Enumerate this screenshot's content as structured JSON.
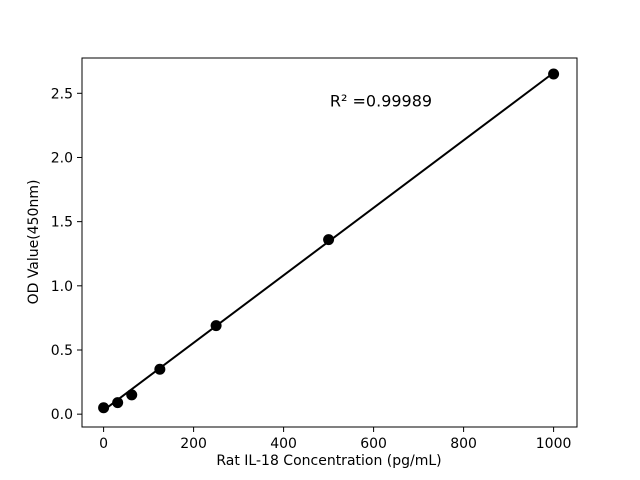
{
  "figure": {
    "background": "#ffffff"
  },
  "chart_data": {
    "type": "scatter",
    "xlabel": "Rat IL-18 Concentration (pg/mL)",
    "ylabel": "OD Value(450nm)",
    "annotation": "R² =0.99989",
    "x": [
      0,
      31.25,
      62.5,
      125,
      250,
      500,
      1000
    ],
    "y": [
      0.05,
      0.09,
      0.15,
      0.35,
      0.69,
      1.36,
      2.65
    ],
    "fit_line": {
      "x": [
        0,
        1000
      ],
      "y": [
        0.03,
        2.66
      ]
    },
    "xticks": [
      0,
      200,
      400,
      600,
      800,
      1000
    ],
    "xtick_labels": [
      "0",
      "200",
      "400",
      "600",
      "800",
      "1000"
    ],
    "yticks": [
      0,
      0.5,
      1.0,
      1.5,
      2.0,
      2.5
    ],
    "ytick_labels": [
      "0.0",
      "0.5",
      "1.0",
      "1.5",
      "2.0",
      "2.5"
    ],
    "xlim": [
      -48,
      1052
    ],
    "ylim": [
      -0.1,
      2.775
    ],
    "marker_color": "#000000",
    "line_color": "#000000",
    "axis_color": "#000000",
    "text_color": "#000000",
    "grid": false
  }
}
